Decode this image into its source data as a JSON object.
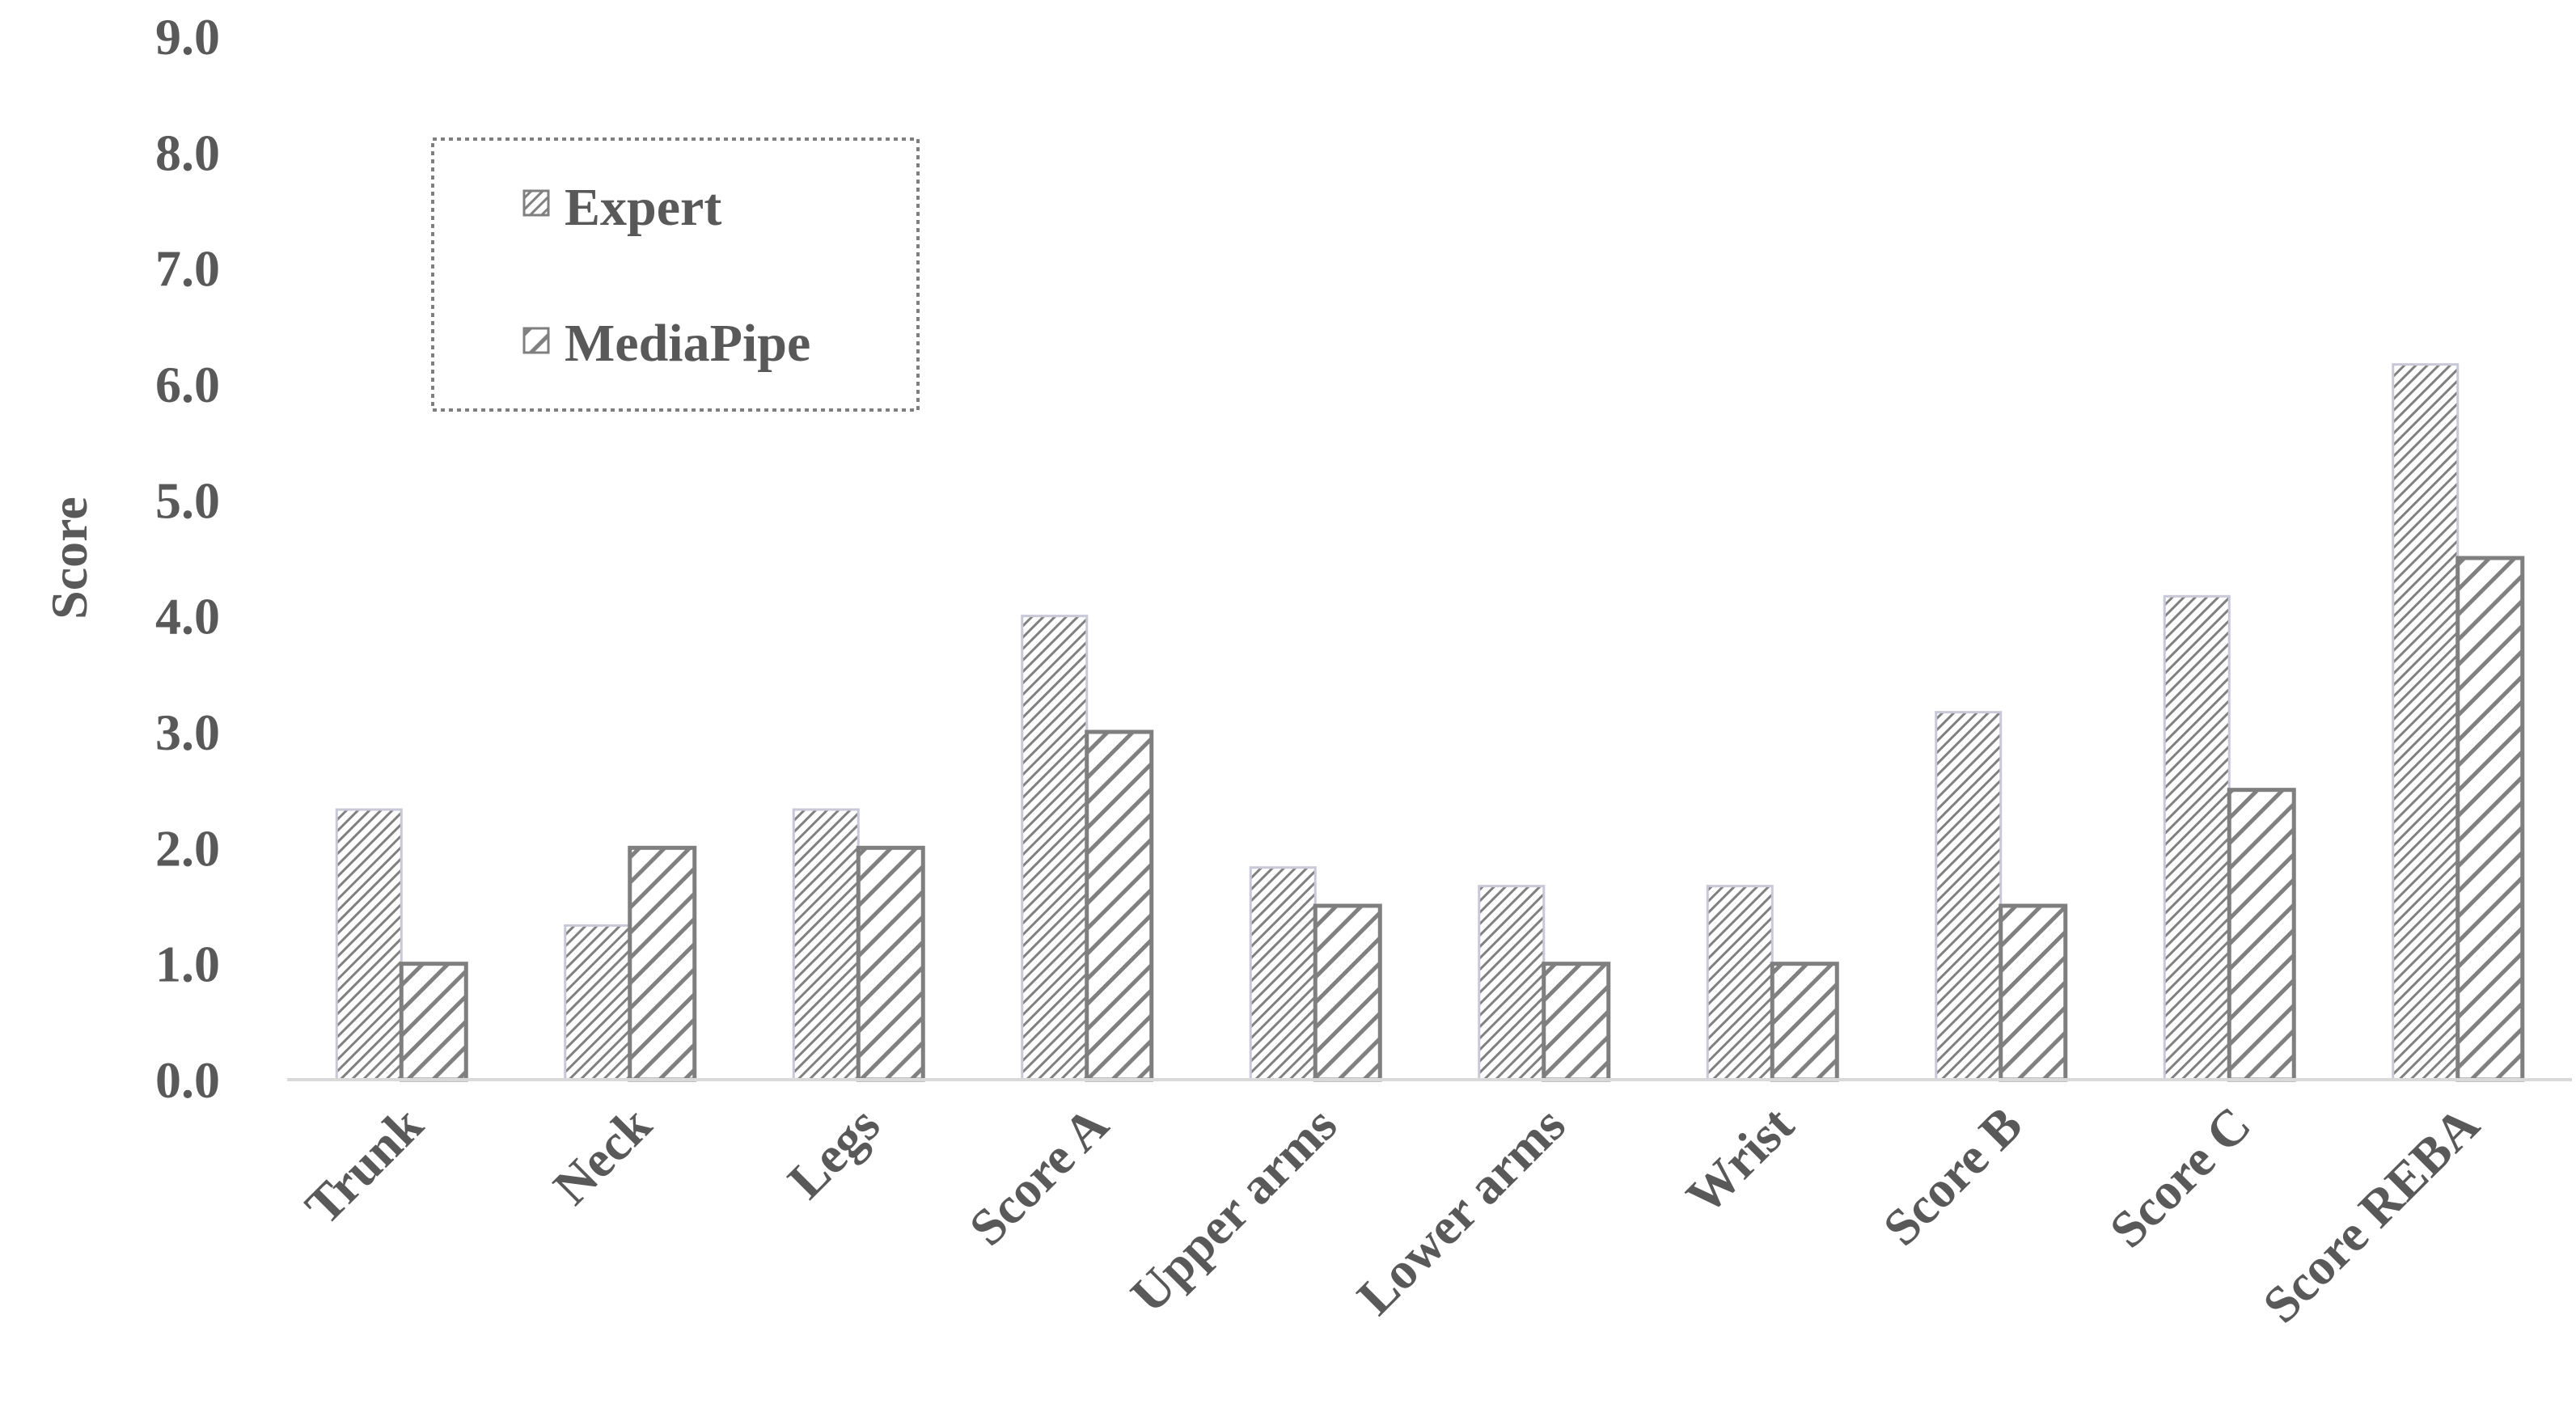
{
  "chart_data": {
    "type": "bar",
    "categories": [
      "Trunk",
      "Neck",
      "Legs",
      "Score A",
      "Upper arms",
      "Lower arms",
      "Wrist",
      "Score B",
      "Score C",
      "Score REBA"
    ],
    "series": [
      {
        "name": "Expert",
        "values": [
          2.33,
          1.33,
          2.33,
          4.0,
          1.83,
          1.67,
          1.67,
          3.17,
          4.17,
          6.17
        ],
        "pattern": "dense-diagonal"
      },
      {
        "name": "MediaPipe",
        "values": [
          1.0,
          2.0,
          2.0,
          3.0,
          1.5,
          1.0,
          1.0,
          1.5,
          2.5,
          4.5
        ],
        "pattern": "wide-diagonal"
      }
    ],
    "ylabel": "Score",
    "xlabel": "",
    "ylim": [
      0,
      9
    ],
    "yticks": [
      "0.0",
      "1.0",
      "2.0",
      "3.0",
      "4.0",
      "5.0",
      "6.0",
      "7.0",
      "8.0",
      "9.0"
    ],
    "grid": false,
    "legend_position": "top-left",
    "colors": {
      "bar_stroke": "#7f7f7f",
      "hatch": "#808080",
      "text": "#595959",
      "axis": "#d9d9d9",
      "legend_border": "#7f7f7f"
    }
  }
}
